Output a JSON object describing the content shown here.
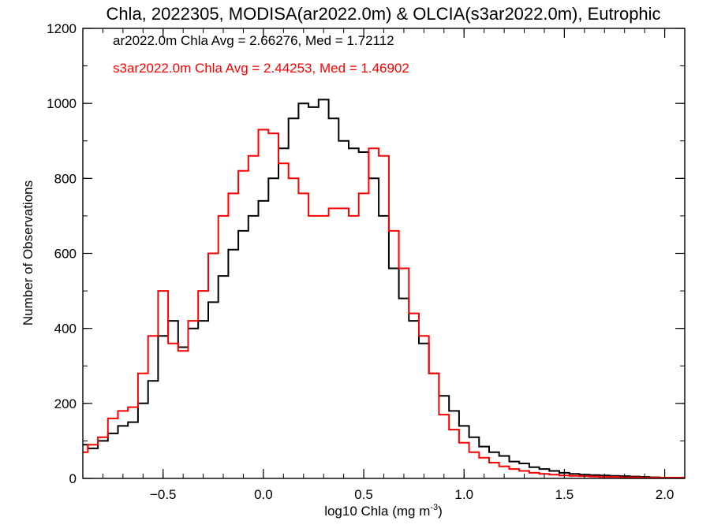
{
  "chart_data": {
    "type": "line",
    "step": true,
    "title": "Chla, 2022305, MODISA(ar2022.0m) & OLCIA(s3ar2022.0m), Eutrophic",
    "xlabel": "log10 Chla (mg m",
    "xlabel_sup": "-3",
    "xlabel_close": ")",
    "ylabel": "Number of Observations",
    "xlim": [
      -0.9,
      2.1
    ],
    "ylim": [
      0,
      1200
    ],
    "xticks": [
      {
        "value": -0.5,
        "label": "−0.5"
      },
      {
        "value": 0.0,
        "label": "0.0"
      },
      {
        "value": 0.5,
        "label": "0.5"
      },
      {
        "value": 1.0,
        "label": "1.0"
      },
      {
        "value": 1.5,
        "label": "1.5"
      },
      {
        "value": 2.0,
        "label": "2.0"
      }
    ],
    "yticks": [
      {
        "value": 0,
        "label": "0"
      },
      {
        "value": 200,
        "label": "200"
      },
      {
        "value": 400,
        "label": "400"
      },
      {
        "value": 600,
        "label": "600"
      },
      {
        "value": 800,
        "label": "800"
      },
      {
        "value": 1000,
        "label": "1000"
      },
      {
        "value": 1200,
        "label": "1200"
      }
    ],
    "grid": false,
    "legend_placement": "top-left",
    "series": [
      {
        "name": "ar2022.0m",
        "legend_text": "ar2022.0m Chla Avg = 2.66276, Med = 1.72112",
        "color": "#000000",
        "x": [
          -0.9,
          -0.85,
          -0.8,
          -0.75,
          -0.7,
          -0.65,
          -0.6,
          -0.55,
          -0.5,
          -0.45,
          -0.4,
          -0.35,
          -0.3,
          -0.25,
          -0.2,
          -0.15,
          -0.1,
          -0.05,
          0.0,
          0.05,
          0.1,
          0.15,
          0.2,
          0.25,
          0.3,
          0.35,
          0.4,
          0.45,
          0.5,
          0.55,
          0.6,
          0.65,
          0.7,
          0.75,
          0.8,
          0.85,
          0.9,
          0.95,
          1.0,
          1.05,
          1.1,
          1.15,
          1.2,
          1.25,
          1.3,
          1.35,
          1.4,
          1.45,
          1.5,
          1.55,
          1.6,
          1.65,
          1.7,
          1.75,
          1.8,
          1.85,
          1.9,
          1.95,
          2.0,
          2.05,
          2.1
        ],
        "y": [
          90,
          80,
          100,
          120,
          140,
          150,
          200,
          260,
          380,
          420,
          350,
          400,
          420,
          470,
          540,
          610,
          660,
          700,
          740,
          800,
          880,
          960,
          1000,
          990,
          1010,
          960,
          900,
          880,
          870,
          800,
          700,
          560,
          480,
          420,
          360,
          280,
          220,
          180,
          140,
          110,
          85,
          70,
          60,
          45,
          40,
          30,
          25,
          20,
          15,
          12,
          10,
          9,
          8,
          7,
          6,
          5,
          4,
          3,
          2,
          2,
          2
        ]
      },
      {
        "name": "s3ar2022.0m",
        "legend_text": "s3ar2022.0m Chla Avg = 2.44253, Med = 1.46902",
        "color": "#ff0000",
        "x": [
          -0.9,
          -0.85,
          -0.8,
          -0.75,
          -0.7,
          -0.65,
          -0.6,
          -0.55,
          -0.5,
          -0.45,
          -0.4,
          -0.35,
          -0.3,
          -0.25,
          -0.2,
          -0.15,
          -0.1,
          -0.05,
          0.0,
          0.05,
          0.1,
          0.15,
          0.2,
          0.25,
          0.3,
          0.35,
          0.4,
          0.45,
          0.5,
          0.55,
          0.6,
          0.65,
          0.7,
          0.75,
          0.8,
          0.85,
          0.9,
          0.95,
          1.0,
          1.05,
          1.1,
          1.15,
          1.2,
          1.25,
          1.3,
          1.35,
          1.4,
          1.45,
          1.5,
          1.55,
          1.6,
          1.65,
          1.7,
          1.75,
          1.8,
          1.85,
          1.9,
          1.95,
          2.0,
          2.05,
          2.1
        ],
        "y": [
          70,
          90,
          110,
          160,
          180,
          190,
          280,
          380,
          500,
          360,
          340,
          420,
          500,
          600,
          700,
          760,
          820,
          860,
          930,
          920,
          840,
          800,
          760,
          700,
          700,
          720,
          720,
          700,
          760,
          880,
          860,
          660,
          560,
          440,
          380,
          280,
          170,
          130,
          95,
          70,
          55,
          42,
          32,
          25,
          20,
          15,
          12,
          10,
          8,
          7,
          6,
          5,
          4,
          4,
          3,
          3,
          2,
          2,
          2,
          2,
          2
        ]
      }
    ]
  }
}
